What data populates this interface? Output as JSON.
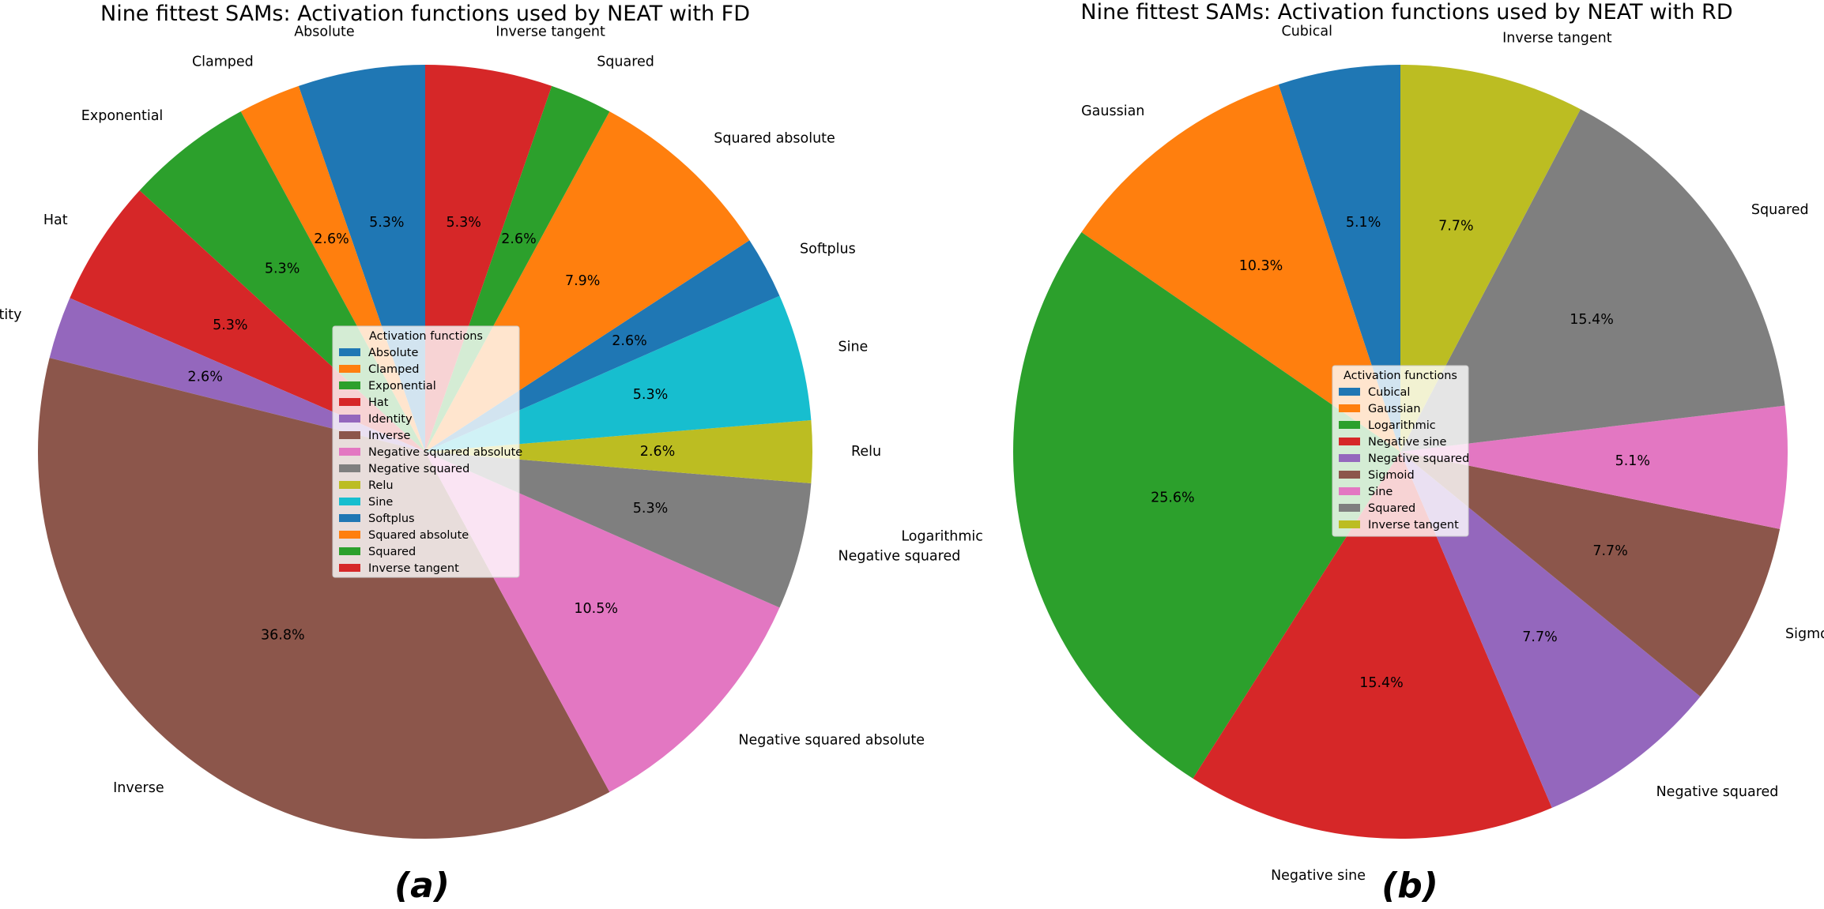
{
  "chart_data": [
    {
      "type": "pie",
      "title": "Nine fittest SAMs: Activation functions used by NEAT with FD",
      "panel_label": "(a)",
      "legend_title": "Activation functions",
      "categories": [
        "Absolute",
        "Clamped",
        "Exponential",
        "Hat",
        "Identity",
        "Inverse",
        "Negative squared absolute",
        "Negative squared",
        "Relu",
        "Sine",
        "Softplus",
        "Squared absolute",
        "Squared",
        "Inverse tangent"
      ],
      "values": [
        5.3,
        2.6,
        5.3,
        5.3,
        2.6,
        36.8,
        10.5,
        5.3,
        2.6,
        5.3,
        2.6,
        7.9,
        2.6,
        5.3
      ],
      "percent_labels": [
        "5.3%",
        "2.6%",
        "5.3%",
        "5.3%",
        "2.6%",
        "36.8%",
        "10.5%",
        "5.3%",
        "2.6%",
        "5.3%",
        "2.6%",
        "7.9%",
        "2.6%",
        "5.3%"
      ],
      "colors": [
        "#1f77b4",
        "#ff7f0e",
        "#2ca02c",
        "#d62728",
        "#9467bd",
        "#8c564b",
        "#e377c2",
        "#7f7f7f",
        "#bcbd22",
        "#17becf",
        "#1f77b4",
        "#ff7f0e",
        "#2ca02c",
        "#d62728"
      ],
      "start_angle_deg": 90,
      "direction": "counterclockwise",
      "legend_location": "center"
    },
    {
      "type": "pie",
      "title": "Nine fittest SAMs: Activation functions used by NEAT with RD",
      "panel_label": "(b)",
      "legend_title": "Activation functions",
      "categories": [
        "Cubical",
        "Gaussian",
        "Logarithmic",
        "Negative sine",
        "Negative squared",
        "Sigmoid",
        "Sine",
        "Squared",
        "Inverse tangent"
      ],
      "values": [
        5.1,
        10.3,
        25.6,
        15.4,
        7.7,
        7.7,
        5.1,
        15.4,
        7.7
      ],
      "percent_labels": [
        "5.1%",
        "10.3%",
        "25.6%",
        "15.4%",
        "7.7%",
        "7.7%",
        "5.1%",
        "15.4%",
        "7.7%"
      ],
      "colors": [
        "#1f77b4",
        "#ff7f0e",
        "#2ca02c",
        "#d62728",
        "#9467bd",
        "#8c564b",
        "#e377c2",
        "#7f7f7f",
        "#bcbd22"
      ],
      "start_angle_deg": 90,
      "direction": "counterclockwise",
      "legend_location": "center"
    }
  ]
}
